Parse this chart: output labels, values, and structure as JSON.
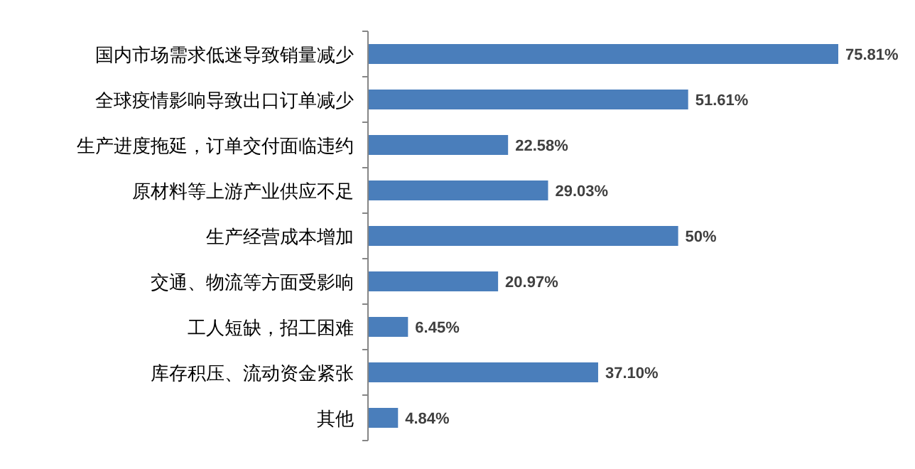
{
  "chart_data": {
    "type": "bar",
    "orientation": "horizontal",
    "categories": [
      "国内市场需求低迷导致销量减少",
      "全球疫情影响导致出口订单减少",
      "生产进度拖延，订单交付面临违约",
      "原材料等上游产业供应不足",
      "生产经营成本增加",
      "交通、物流等方面受影响",
      "工人短缺，招工困难",
      "库存积压、流动资金紧张",
      "其他"
    ],
    "values": [
      75.81,
      51.61,
      22.58,
      29.03,
      50,
      20.97,
      6.45,
      37.1,
      4.84
    ],
    "value_labels": [
      "75.81%",
      "51.61%",
      "22.58%",
      "29.03%",
      "50%",
      "20.97%",
      "6.45%",
      "37.10%",
      "4.84%"
    ],
    "color": "#4a7ebb"
  }
}
